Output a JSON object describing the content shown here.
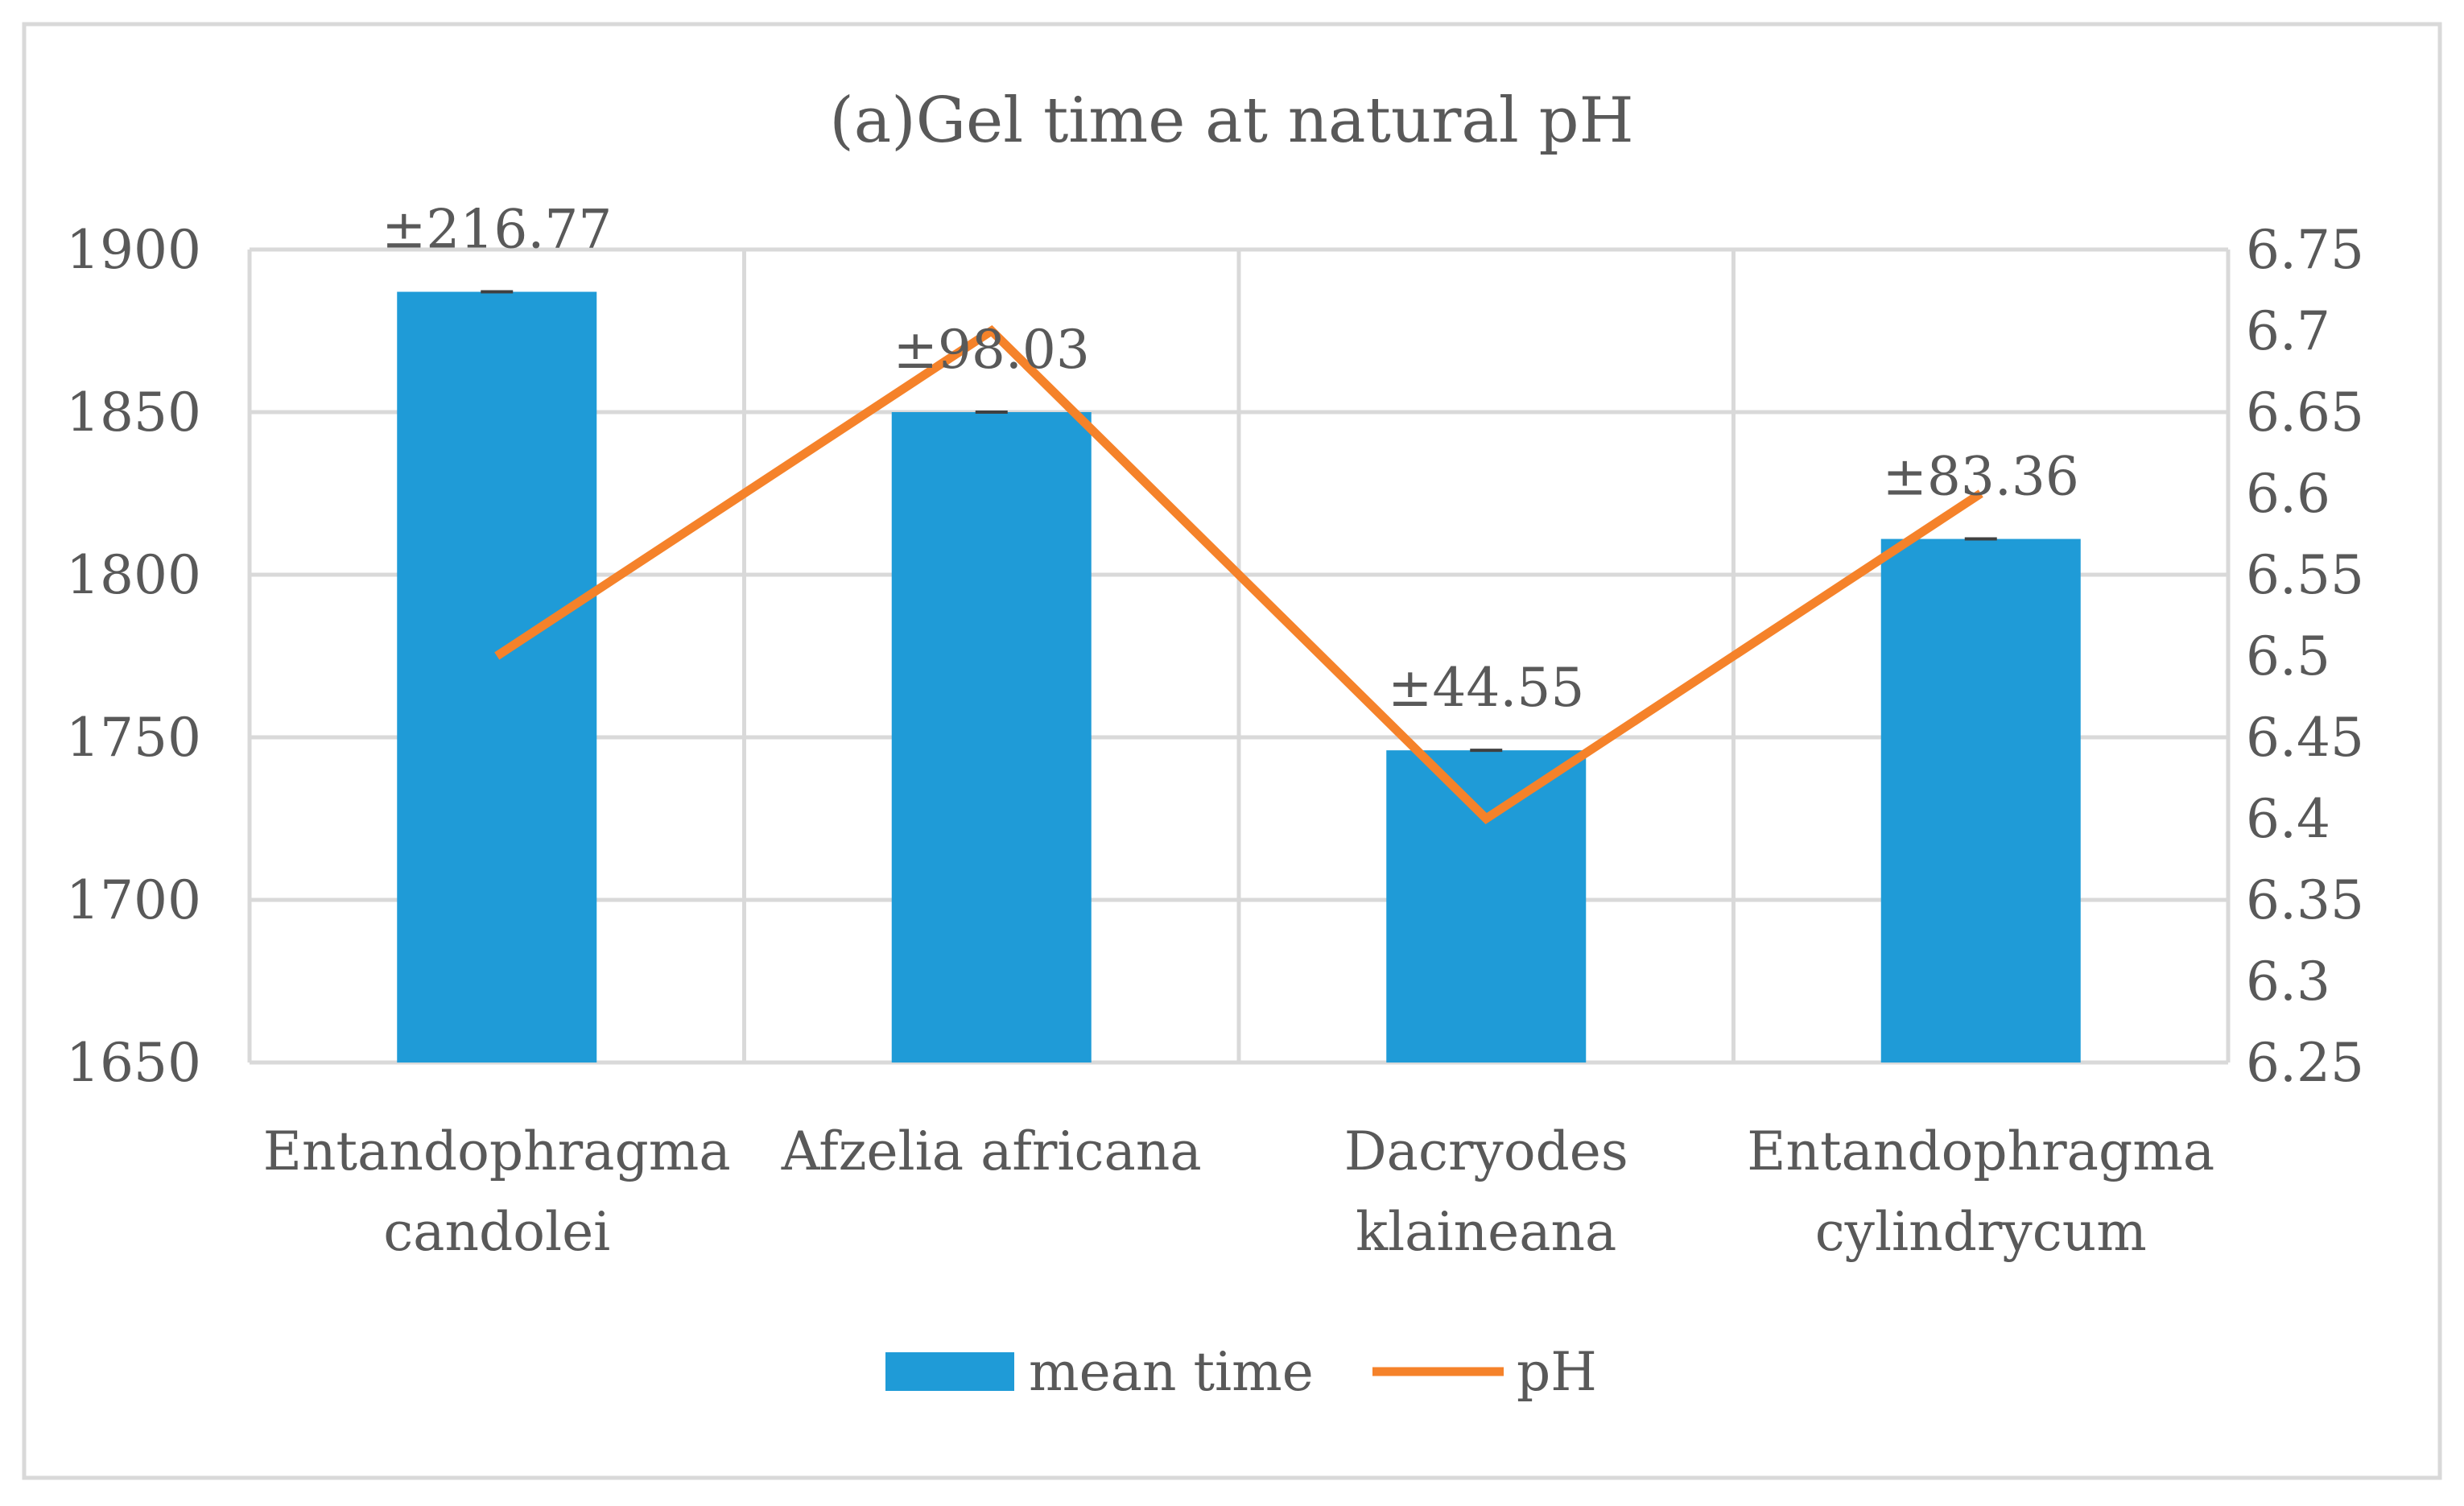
{
  "chart_data": {
    "type": "bar+line",
    "title": "(a)Gel time at natural pH",
    "categories": [
      [
        "Entandophragma",
        "candolei"
      ],
      [
        "Afzelia africana"
      ],
      [
        "Dacryodes",
        "klaineana"
      ],
      [
        "Entandophragma",
        "cylindrycum"
      ]
    ],
    "series": [
      {
        "name": "mean time",
        "type": "bar",
        "axis": "left",
        "color": "#1F9BD7",
        "values": [
          1887,
          1850,
          1746,
          1811
        ],
        "error_labels": [
          "±216.77",
          "±98.03",
          "±44.55",
          "±83.36"
        ]
      },
      {
        "name": "pH",
        "type": "line",
        "axis": "right",
        "color": "#F5822A",
        "values": [
          6.5,
          6.7,
          6.4,
          6.6
        ]
      }
    ],
    "left_axis": {
      "min": 1650,
      "max": 1900,
      "step": 50,
      "ticks": [
        "1650",
        "1700",
        "1750",
        "1800",
        "1850",
        "1900"
      ]
    },
    "right_axis": {
      "min": 6.25,
      "max": 6.75,
      "step": 0.05,
      "ticks": [
        "6.25",
        "6.3",
        "6.35",
        "6.4",
        "6.45",
        "6.5",
        "6.55",
        "6.6",
        "6.65",
        "6.7",
        "6.75"
      ]
    },
    "grid": true,
    "legend": [
      "mean time",
      "pH"
    ],
    "legend_position": "bottom"
  }
}
